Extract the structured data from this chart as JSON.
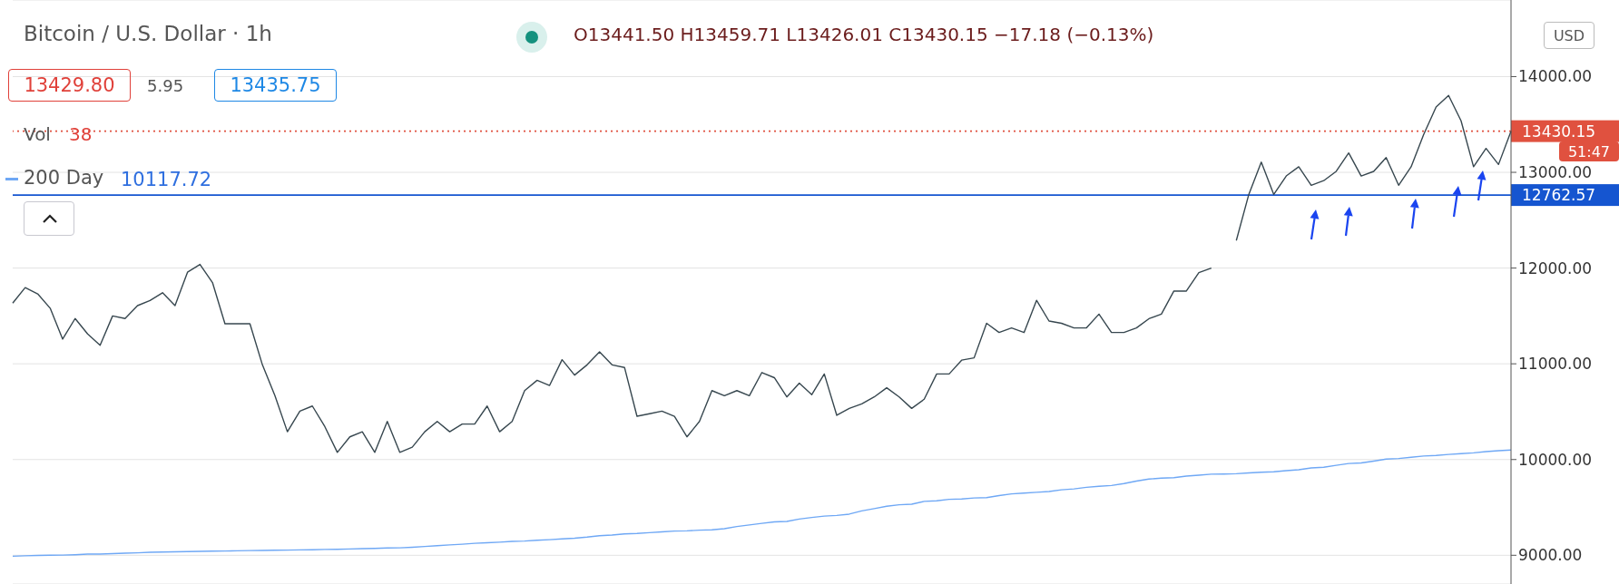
{
  "chart_data": {
    "type": "line",
    "title": "Bitcoin / U.S. Dollar · 1h",
    "subtitle": "O13441.50 H13459.71 L13426.01 C13430.15 −17.18 (−0.13%)",
    "categories": [
      null,
      null,
      null,
      null,
      null,
      null,
      null,
      null,
      null,
      null,
      null,
      null,
      null,
      null,
      null,
      null,
      null,
      null,
      null,
      null,
      null,
      null,
      null,
      null,
      null,
      null,
      null,
      null,
      null,
      null,
      null,
      null,
      null,
      null,
      null,
      null,
      null,
      null,
      null,
      null,
      null,
      null,
      null,
      null,
      null,
      null,
      null,
      null,
      null,
      null,
      null,
      null,
      null,
      null,
      null,
      null,
      null,
      null,
      null,
      null,
      null,
      null,
      null,
      null,
      null,
      null,
      null,
      null,
      null,
      null,
      null,
      null,
      null,
      null,
      null,
      null,
      null,
      null,
      null,
      null,
      null,
      null,
      null,
      null,
      null,
      null,
      null,
      null,
      null,
      null,
      null,
      null,
      null,
      null,
      null,
      null,
      null,
      null,
      null,
      null,
      null,
      null,
      null,
      null,
      null,
      null,
      null,
      null,
      null,
      null,
      null,
      null,
      null,
      null,
      null,
      null,
      null,
      null,
      null,
      null,
      null
    ],
    "series": [
      {
        "color": "#37474f",
        "values": [
          11634,
          11796,
          11731,
          11581,
          11258,
          11473,
          11312,
          11194,
          11500,
          11473,
          11608,
          11661,
          11742,
          11608,
          11957,
          12038,
          11849,
          11419,
          11419,
          11419,
          10989,
          10667,
          10290,
          10505,
          10559,
          10344,
          10075,
          10237,
          10290,
          10075,
          10398,
          10075,
          10129,
          10290,
          10398,
          10290,
          10371,
          10371,
          10559,
          10290,
          10398,
          10720,
          10828,
          10774,
          11043,
          10882,
          10989,
          11124,
          10989,
          10962,
          10452,
          10478,
          10505,
          10452,
          10237,
          10398,
          10720,
          10667,
          10720,
          10667,
          10909,
          10855,
          10654,
          10798,
          10678,
          10894,
          10462,
          10534,
          10582,
          10654,
          10750,
          10654,
          10534,
          10630,
          10894,
          10894,
          11038,
          11062,
          11423,
          11327,
          11375,
          11327,
          11663,
          11447,
          11423,
          11375,
          11375,
          11519,
          11327,
          11327,
          11375,
          11471,
          11519,
          11760,
          11760,
          11952,
          12000,
          null,
          12288,
          12769,
          13106,
          12769,
          12962,
          13058,
          12865,
          12913,
          13010,
          13202,
          12962,
          13010,
          13154,
          12865,
          13058,
          13394,
          13683,
          13803,
          13538,
          13058,
          13250,
          13082,
          13430
        ]
      },
      {
        "name": "200 Day",
        "color": "#6fa8f5",
        "values": [
          8990,
          8995,
          8998,
          9001,
          9002,
          9006,
          9012,
          9013,
          9018,
          9022,
          9026,
          9031,
          9034,
          9036,
          9039,
          9041,
          9043,
          9045,
          9047,
          9049,
          9051,
          9053,
          9054,
          9056,
          9058,
          9061,
          9063,
          9066,
          9069,
          9072,
          9076,
          9078,
          9084,
          9092,
          9100,
          9108,
          9116,
          9125,
          9131,
          9137,
          9145,
          9149,
          9157,
          9163,
          9171,
          9179,
          9190,
          9204,
          9212,
          9223,
          9228,
          9236,
          9244,
          9253,
          9255,
          9262,
          9266,
          9278,
          9300,
          9317,
          9333,
          9349,
          9354,
          9378,
          9395,
          9409,
          9416,
          9430,
          9464,
          9487,
          9512,
          9528,
          9533,
          9563,
          9569,
          9584,
          9588,
          9599,
          9602,
          9623,
          9641,
          9649,
          9658,
          9666,
          9684,
          9693,
          9710,
          9721,
          9729,
          9749,
          9775,
          9796,
          9806,
          9811,
          9827,
          9837,
          9847,
          9849,
          9852,
          9860,
          9867,
          9872,
          9884,
          9894,
          9913,
          9919,
          9940,
          9959,
          9965,
          9984,
          10005,
          10011,
          10024,
          10037,
          10043,
          10053,
          10062,
          10070,
          10083,
          10092,
          10099
        ]
      }
    ],
    "ylim": [
      8700,
      14800
    ],
    "yticks": [
      {
        "value": 9000,
        "label": "9000.00"
      },
      {
        "value": 10000,
        "label": "10000.00"
      },
      {
        "value": 11000,
        "label": "11000.00"
      },
      {
        "value": 12000,
        "label": "12000.00"
      },
      {
        "value": 13000,
        "label": "13000.00"
      },
      {
        "value": 14000,
        "label": "14000.00"
      }
    ],
    "ref_lines": [
      {
        "axis": "y",
        "value": 13430.15,
        "label": "13430.15",
        "color": "#e0513f",
        "line_style": "dotted"
      },
      {
        "axis": "y",
        "value": 12762.57,
        "label": "12762.57",
        "color": "#1555d0",
        "line_style": "solid"
      }
    ],
    "annotations": [
      "13429.80",
      "5.95",
      "13435.75",
      "Vol",
      "38",
      "10117.72",
      "USD",
      "51:47"
    ],
    "grid": "y",
    "legend": "top left",
    "tick_labels": "y"
  }
}
